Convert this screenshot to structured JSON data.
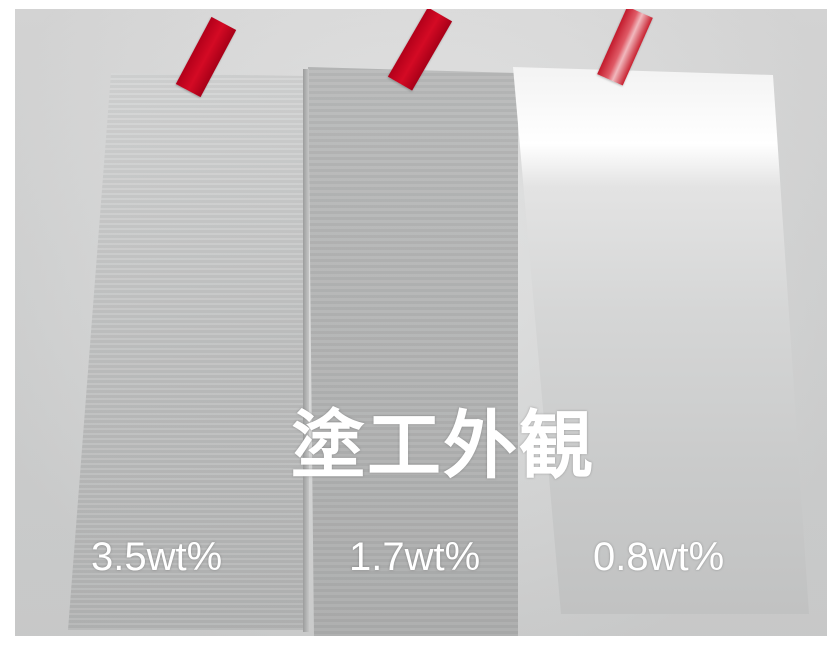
{
  "title": "塗工外観",
  "samples": [
    {
      "label": "3.5wt%"
    },
    {
      "label": "1.7wt%"
    },
    {
      "label": "0.8wt%"
    }
  ],
  "colors": {
    "tape": "#c8001e",
    "backdrop": "#d8d8d8",
    "text": "#ffffff"
  }
}
